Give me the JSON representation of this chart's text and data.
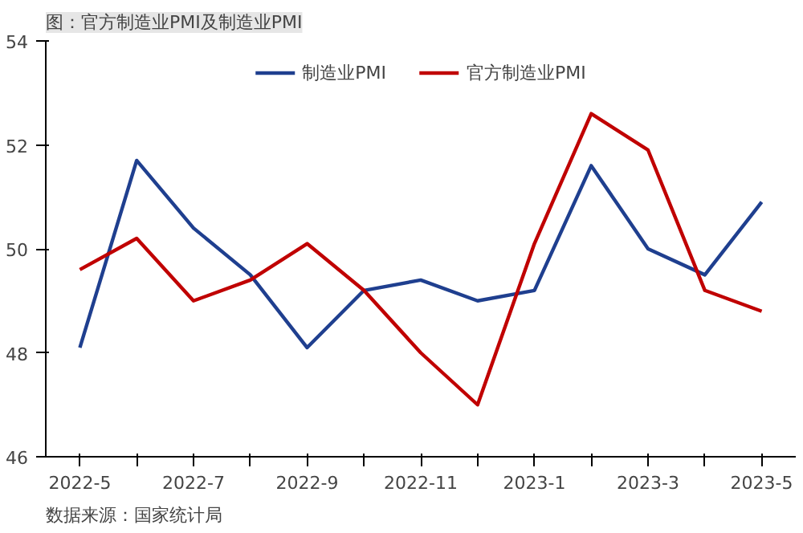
{
  "chart_data": {
    "type": "line",
    "title": "图：官方制造业PMI及制造业PMI",
    "categories": [
      "2022-5",
      null,
      "2022-7",
      null,
      "2022-9",
      null,
      "2022-11",
      null,
      "2023-1",
      null,
      "2023-3",
      null,
      "2023-5"
    ],
    "series": [
      {
        "name": "制造业PMI",
        "color": "#1f3f8f",
        "values": [
          48.1,
          51.7,
          50.4,
          49.5,
          48.1,
          49.2,
          49.4,
          49.0,
          49.2,
          51.6,
          50.0,
          49.5,
          50.9
        ]
      },
      {
        "name": "官方制造业PMI",
        "color": "#c00000",
        "values": [
          49.6,
          50.2,
          49.0,
          49.4,
          50.1,
          49.2,
          48.0,
          47.0,
          50.1,
          52.6,
          51.9,
          49.2,
          48.8
        ]
      }
    ],
    "ylim": [
      46,
      54
    ],
    "yticks": [
      46,
      48,
      50,
      52,
      54
    ],
    "grid": false,
    "legend": "top",
    "marker": "none",
    "line_style": "solid",
    "annotations": [
      "数据来源：国家统计局"
    ]
  }
}
